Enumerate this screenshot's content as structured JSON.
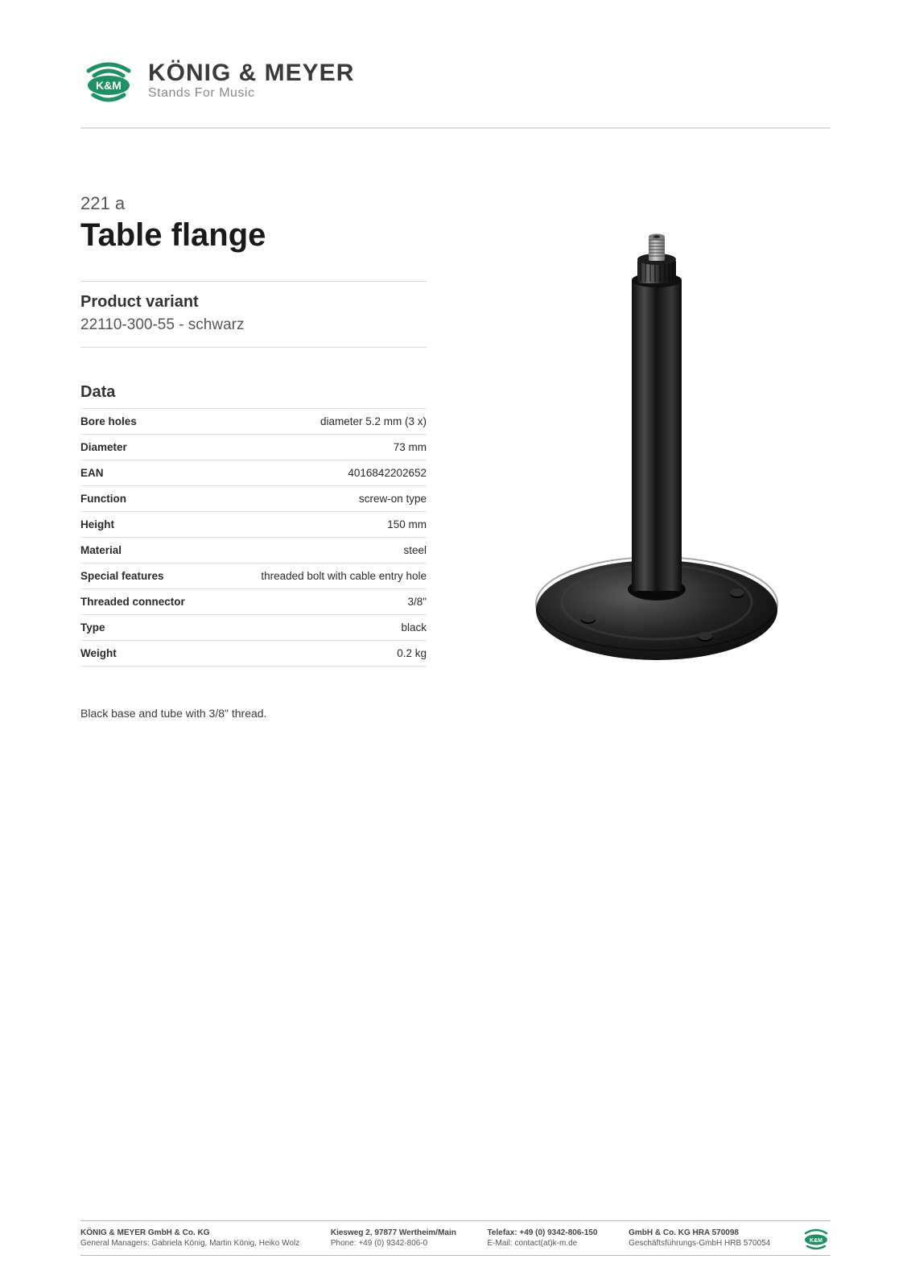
{
  "logo": {
    "brand": "KÖNIG & MEYER",
    "tagline": "Stands For Music",
    "mark_text": "K&M",
    "accent_color": "#1f8f65",
    "text_color": "#3a3a3a"
  },
  "product": {
    "code": "221 a",
    "title": "Table flange"
  },
  "variant": {
    "heading": "Product variant",
    "value": "22110-300-55 - schwarz"
  },
  "data_section": {
    "heading": "Data",
    "rows": [
      {
        "label": "Bore holes",
        "value": "diameter 5.2 mm (3 x)"
      },
      {
        "label": "Diameter",
        "value": "73 mm"
      },
      {
        "label": "EAN",
        "value": "4016842202652"
      },
      {
        "label": "Function",
        "value": "screw-on type"
      },
      {
        "label": "Height",
        "value": "150 mm"
      },
      {
        "label": "Material",
        "value": "steel"
      },
      {
        "label": "Special features",
        "value": "threaded bolt with cable entry hole"
      },
      {
        "label": "Threaded connector",
        "value": "3/8\""
      },
      {
        "label": "Type",
        "value": "black"
      },
      {
        "label": "Weight",
        "value": "0.2 kg"
      }
    ]
  },
  "description": "Black base and tube with 3/8\" thread.",
  "product_image": {
    "base_color": "#1b1b1b",
    "highlight_color": "#8a8a8a",
    "bolt_color": "#9a9a9a"
  },
  "footer": {
    "col1": {
      "line1": "KÖNIG & MEYER GmbH & Co. KG",
      "line2": "General Managers: Gabriela König, Martin König, Heiko Wolz"
    },
    "col2": {
      "line1": "Kiesweg 2, 97877 Wertheim/Main",
      "line2": "Phone:   +49 (0) 9342-806-0"
    },
    "col3": {
      "line1": "Telefax: +49 (0) 9342-806-150",
      "line2": "E-Mail: contact(at)k-m.de"
    },
    "col4": {
      "line1": "GmbH & Co. KG HRA 570098",
      "line2": "Geschäftsführungs-GmbH HRB 570054"
    }
  }
}
